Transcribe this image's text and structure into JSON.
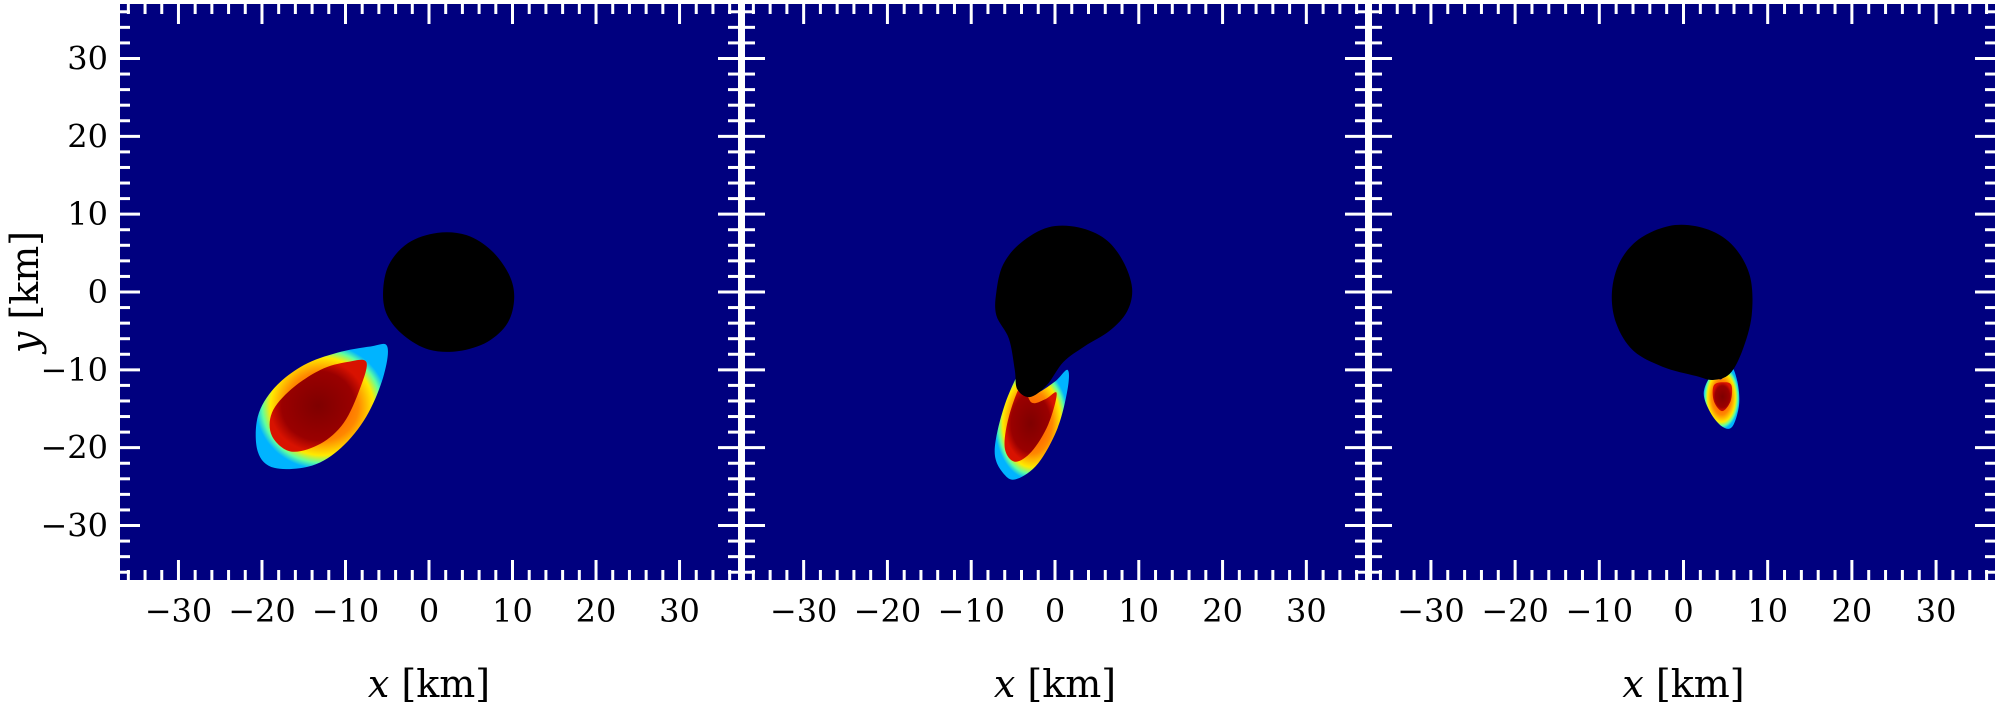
{
  "chart_data": [
    {
      "type": "heatmap",
      "xlabel_var": "x",
      "xlabel_unit": "[km]",
      "ylabel_var": "y",
      "ylabel_unit": "[km]",
      "xlim": [
        -37,
        37
      ],
      "ylim": [
        -37,
        37
      ],
      "xticks": [
        -30,
        -20,
        -10,
        0,
        10,
        20,
        30
      ],
      "yticks": [
        -30,
        -20,
        -10,
        0,
        10,
        20,
        30
      ],
      "show_yticklabels": true,
      "background_color": "#00007f",
      "black_hole": [
        [
          -5.5,
          0
        ],
        [
          -4.8,
          3.5
        ],
        [
          -2.5,
          6.3
        ],
        [
          1,
          7.6
        ],
        [
          4.5,
          7.3
        ],
        [
          7.5,
          5.3
        ],
        [
          9.6,
          2.2
        ],
        [
          10.2,
          -0.8
        ],
        [
          9.4,
          -4
        ],
        [
          7,
          -6.4
        ],
        [
          3.5,
          -7.6
        ],
        [
          0,
          -7.4
        ],
        [
          -3,
          -5.6
        ],
        [
          -5,
          -3
        ]
      ],
      "matter": [
        {
          "rim": [
            [
              -5,
              -7
            ],
            [
              -5.5,
              -11
            ],
            [
              -7.5,
              -16
            ],
            [
              -10.5,
              -20
            ],
            [
              -14,
              -22.3
            ],
            [
              -18.5,
              -22.6
            ],
            [
              -20.5,
              -20.5
            ],
            [
              -20.5,
              -16
            ],
            [
              -18.5,
              -12.3
            ],
            [
              -15,
              -9.4
            ],
            [
              -11,
              -7.8
            ],
            [
              -7,
              -7
            ]
          ],
          "core": [
            [
              -7.5,
              -9
            ],
            [
              -8.3,
              -12.5
            ],
            [
              -10.2,
              -16.8
            ],
            [
              -13,
              -19.5
            ],
            [
              -16.5,
              -20.5
            ],
            [
              -18.8,
              -18.5
            ],
            [
              -18.8,
              -15.5
            ],
            [
              -16.5,
              -12.5
            ],
            [
              -13,
              -10
            ],
            [
              -9.8,
              -9
            ]
          ]
        }
      ]
    },
    {
      "type": "heatmap",
      "xlabel_var": "x",
      "xlabel_unit": "[km]",
      "xlim": [
        -37,
        37
      ],
      "ylim": [
        -37,
        37
      ],
      "xticks": [
        -30,
        -20,
        -10,
        0,
        10,
        20,
        30
      ],
      "yticks": [
        -30,
        -20,
        -10,
        0,
        10,
        20,
        30
      ],
      "show_yticklabels": false,
      "background_color": "#00007f",
      "black_hole": [
        [
          -7,
          0
        ],
        [
          -6.2,
          3.5
        ],
        [
          -4.1,
          6.3
        ],
        [
          -0.8,
          8.3
        ],
        [
          2.8,
          8.3
        ],
        [
          6,
          6.8
        ],
        [
          8.1,
          4
        ],
        [
          9.2,
          0.5
        ],
        [
          8.6,
          -2.5
        ],
        [
          6.5,
          -5
        ],
        [
          3.5,
          -7
        ],
        [
          1,
          -9
        ],
        [
          -1,
          -12
        ],
        [
          -3,
          -13.5
        ],
        [
          -4.5,
          -12.5
        ],
        [
          -4.8,
          -10
        ],
        [
          -5.5,
          -6
        ],
        [
          -7,
          -3
        ]
      ],
      "matter": [
        {
          "rim": [
            [
              -3.8,
              -9.5
            ],
            [
              -6,
              -14.5
            ],
            [
              -7.2,
              -20.5
            ],
            [
              -6,
              -23.5
            ],
            [
              -4.5,
              -24
            ],
            [
              -2,
              -22
            ],
            [
              0.3,
              -17.5
            ],
            [
              1.5,
              -12.5
            ],
            [
              1.5,
              -10
            ],
            [
              0,
              -11.5
            ],
            [
              -2.3,
              -13
            ],
            [
              -3.5,
              -12
            ]
          ],
          "core": [
            [
              -4,
              -12
            ],
            [
              -5.5,
              -16
            ],
            [
              -6,
              -20
            ],
            [
              -4.8,
              -21.8
            ],
            [
              -2.8,
              -20.5
            ],
            [
              -0.8,
              -17
            ],
            [
              0.2,
              -13
            ],
            [
              -1.2,
              -13.8
            ],
            [
              -2.8,
              -14.2
            ]
          ]
        }
      ]
    },
    {
      "type": "heatmap",
      "xlabel_var": "x",
      "xlabel_unit": "[km]",
      "xlim": [
        -37,
        37
      ],
      "ylim": [
        -37,
        37
      ],
      "xticks": [
        -30,
        -20,
        -10,
        0,
        10,
        20,
        30
      ],
      "yticks": [
        -30,
        -20,
        -10,
        0,
        10,
        20,
        30
      ],
      "show_yticklabels": false,
      "background_color": "#00007f",
      "black_hole": [
        [
          -8.5,
          0
        ],
        [
          -7.5,
          4
        ],
        [
          -5,
          7
        ],
        [
          -1,
          8.6
        ],
        [
          3,
          8
        ],
        [
          6,
          5.8
        ],
        [
          7.9,
          2
        ],
        [
          8.1,
          -3
        ],
        [
          7,
          -7.5
        ],
        [
          5.5,
          -10.5
        ],
        [
          3.5,
          -11.3
        ],
        [
          1.5,
          -10.8
        ],
        [
          -2.5,
          -9.6
        ],
        [
          -6,
          -7.5
        ],
        [
          -8,
          -4
        ]
      ],
      "matter": [
        {
          "rim": [
            [
              3.3,
              -10.8
            ],
            [
              2.4,
              -13
            ],
            [
              3.2,
              -15.5
            ],
            [
              4.6,
              -17.3
            ],
            [
              5.8,
              -17.3
            ],
            [
              6.6,
              -14.5
            ],
            [
              6.4,
              -11.5
            ],
            [
              5.6,
              -9.5
            ],
            [
              4.5,
              -11.2
            ]
          ],
          "core": [
            [
              3.6,
              -12
            ],
            [
              3.6,
              -14
            ],
            [
              4.6,
              -15.3
            ],
            [
              5.6,
              -14
            ],
            [
              5.7,
              -12
            ],
            [
              4.8,
              -11.6
            ]
          ]
        }
      ]
    }
  ]
}
